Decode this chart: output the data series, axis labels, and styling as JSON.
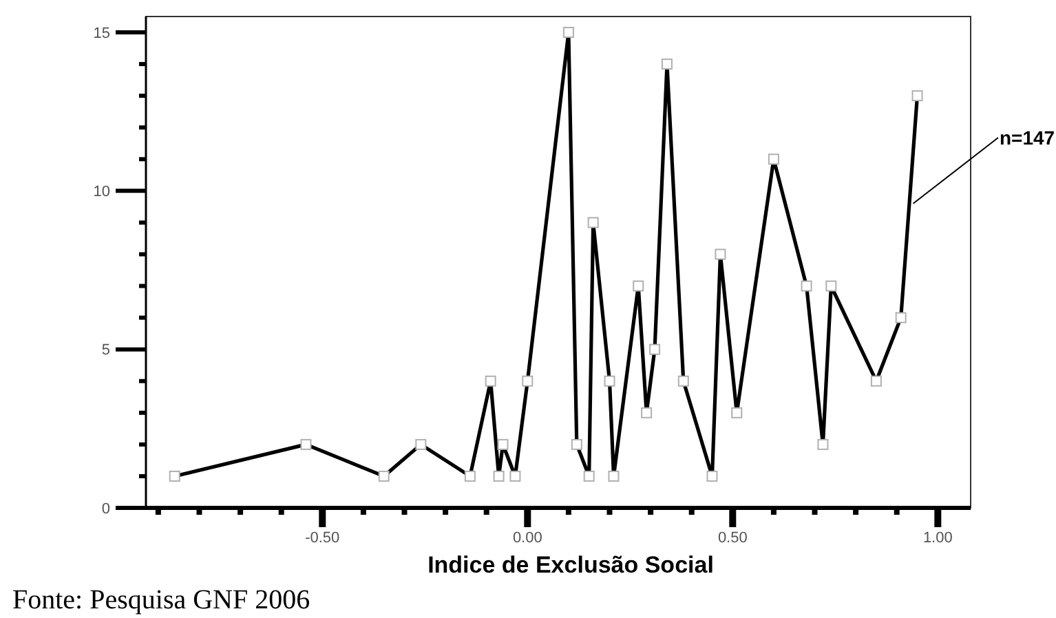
{
  "chart_data": {
    "type": "line",
    "xlabel": "Indice de Exclusão Social",
    "x": [
      -0.86,
      -0.54,
      -0.35,
      -0.26,
      -0.14,
      -0.09,
      -0.07,
      -0.06,
      -0.03,
      0.0,
      0.1,
      0.12,
      0.15,
      0.16,
      0.2,
      0.21,
      0.27,
      0.29,
      0.31,
      0.34,
      0.38,
      0.45,
      0.47,
      0.51,
      0.6,
      0.68,
      0.72,
      0.74,
      0.85,
      0.91,
      0.95
    ],
    "values": [
      1,
      2,
      1,
      2,
      1,
      4,
      1,
      2,
      1,
      4,
      15,
      2,
      1,
      9,
      4,
      1,
      7,
      3,
      5,
      14,
      4,
      1,
      8,
      3,
      11,
      7,
      2,
      7,
      4,
      6,
      13
    ],
    "color": "#000000",
    "marker": "square",
    "line_style": "solid",
    "xlim": [
      -0.93,
      1.08
    ],
    "ylim": [
      0,
      15.5
    ],
    "xticks": [
      {
        "value": -0.9,
        "label": null
      },
      {
        "value": -0.8,
        "label": null
      },
      {
        "value": -0.7,
        "label": null
      },
      {
        "value": -0.6,
        "label": null
      },
      {
        "value": -0.5,
        "label": "-0.50"
      },
      {
        "value": -0.4,
        "label": null
      },
      {
        "value": -0.3,
        "label": null
      },
      {
        "value": -0.2,
        "label": null
      },
      {
        "value": -0.1,
        "label": null
      },
      {
        "value": 0,
        "label": "0.00"
      },
      {
        "value": 0.1,
        "label": null
      },
      {
        "value": 0.2,
        "label": null
      },
      {
        "value": 0.3,
        "label": null
      },
      {
        "value": 0.4,
        "label": null
      },
      {
        "value": 0.5,
        "label": "0.50"
      },
      {
        "value": 0.6,
        "label": null
      },
      {
        "value": 0.7,
        "label": null
      },
      {
        "value": 0.8,
        "label": null
      },
      {
        "value": 0.9,
        "label": null
      },
      {
        "value": 1,
        "label": "1.00"
      }
    ],
    "yticks": [
      0,
      {
        "value": 1,
        "label": null
      },
      {
        "value": 2,
        "label": null
      },
      {
        "value": 3,
        "label": null
      },
      {
        "value": 4,
        "label": null
      },
      5,
      {
        "value": 6,
        "label": null
      },
      {
        "value": 7,
        "label": null
      },
      {
        "value": 8,
        "label": null
      },
      {
        "value": 9,
        "label": null
      },
      10,
      {
        "value": 11,
        "label": null
      },
      {
        "value": 12,
        "label": null
      },
      {
        "value": 13,
        "label": null
      },
      {
        "value": 14,
        "label": null
      },
      15
    ],
    "annotations": [
      {
        "text": "n=147",
        "x": 0.94,
        "y": 9.6
      },
      "Fonte: Pesquisa GNF 2006"
    ]
  }
}
